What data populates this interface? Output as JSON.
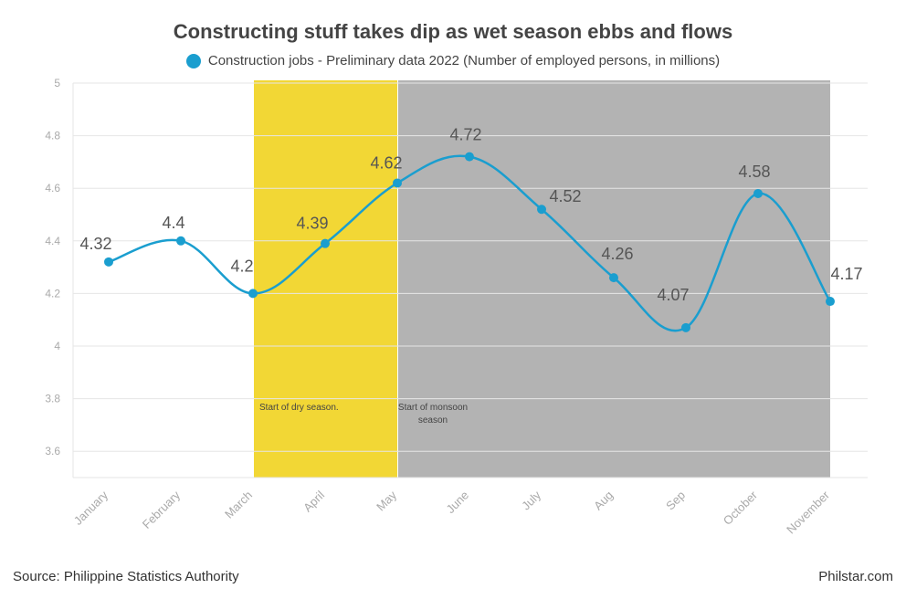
{
  "title": "Constructing stuff takes dip as wet season ebbs and flows",
  "footer": {
    "source": "Source: Philippine Statistics Authority",
    "credit": "Philstar.com"
  },
  "colors": {
    "series": "#1a9ecf",
    "dry_band": "#f2d735",
    "monsoon_band": "#b3b3b3",
    "grid": "#e6e6e6",
    "axis_text": "#aaaaaa",
    "label_text": "#555555"
  },
  "chart_data": {
    "type": "line",
    "title": "Constructing stuff takes dip as wet season ebbs and flows",
    "categories": [
      "January",
      "February",
      "March",
      "April",
      "May",
      "June",
      "July",
      "Aug",
      "Sep",
      "October",
      "November"
    ],
    "series": [
      {
        "name": "Construction jobs - Preliminary data 2022 (Number of employed persons, in millions)",
        "values": [
          4.32,
          4.4,
          4.2,
          4.39,
          4.62,
          4.72,
          4.52,
          4.26,
          4.07,
          4.58,
          4.17
        ]
      }
    ],
    "ylim": [
      3.5,
      5
    ],
    "yticks": [
      "3.6",
      "3.8",
      "4",
      "4.2",
      "4.4",
      "4.6",
      "4.8",
      "5"
    ],
    "data_labels": [
      "4.32",
      "4.4",
      "4.2",
      "4.39",
      "4.62",
      "4.72",
      "4.52",
      "4.26",
      "4.07",
      "4.58",
      "4.17"
    ],
    "bands": [
      {
        "from": "March",
        "to": "May",
        "label_lines": [
          "Start of dry season."
        ],
        "color": "#f2d735"
      },
      {
        "from": "May",
        "to": "November",
        "label_lines": [
          "Start of monsoon",
          "season"
        ],
        "color": "#b3b3b3"
      }
    ],
    "grid": true,
    "legend_position": "top"
  }
}
